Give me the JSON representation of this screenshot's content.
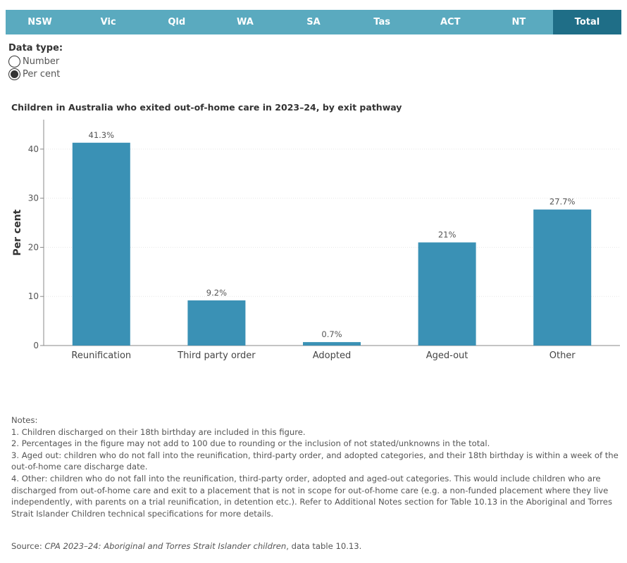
{
  "tabs": [
    {
      "label": "NSW",
      "active": false
    },
    {
      "label": "Vic",
      "active": false
    },
    {
      "label": "Qld",
      "active": false
    },
    {
      "label": "WA",
      "active": false
    },
    {
      "label": "SA",
      "active": false
    },
    {
      "label": "Tas",
      "active": false
    },
    {
      "label": "ACT",
      "active": false
    },
    {
      "label": "NT",
      "active": false
    },
    {
      "label": "Total",
      "active": true
    }
  ],
  "data_type": {
    "title": "Data type:",
    "options": [
      {
        "label": "Number",
        "selected": false
      },
      {
        "label": "Per cent",
        "selected": true
      }
    ]
  },
  "chart_title": {
    "before": "Children in ",
    "region": "Australia",
    "after": " who exited out-of-home care in 2023–24, by exit pathway"
  },
  "chart_data": {
    "type": "bar",
    "categories": [
      "Reunification",
      "Third party order",
      "Adopted",
      "Aged-out",
      "Other"
    ],
    "values": [
      41.3,
      9.2,
      0.7,
      21,
      27.7
    ],
    "data_labels": [
      "41.3%",
      "9.2%",
      "0.7%",
      "21%",
      "27.7%"
    ],
    "ylabel": "Per cent",
    "xlabel": "",
    "ylim": [
      0,
      46
    ],
    "yticks": [
      0,
      10,
      20,
      30,
      40
    ],
    "bar_color": "#3a91b5",
    "grid": true
  },
  "notes": {
    "heading": "Notes:",
    "lines": [
      "1. Children discharged on their 18th birthday are included in this figure.",
      "2. Percentages in the figure may not add to 100 due to rounding or the inclusion of not stated/unknowns in the total.",
      "3. Aged out: children who do not fall into the reunification, third-party order, and adopted categories, and their 18th birthday is within a week of the out-of-home care discharge date.",
      "4. Other: children who do not fall into the reunification, third-party order, adopted and aged-out categories. This would include children who are discharged from out-of-home care and exit to a placement that is not in scope for out-of-home care (e.g. a non-funded placement where they live independently, with parents on a trial reunification, in detention etc.). Refer to Additional Notes section for Table 10.13 in the Aboriginal and Torres Strait Islander Children technical specifications for more details."
    ]
  },
  "source": {
    "prefix": "Source: ",
    "title": "CPA 2023–24: Aboriginal and Torres Strait Islander children",
    "suffix": ", data table 10.13."
  }
}
